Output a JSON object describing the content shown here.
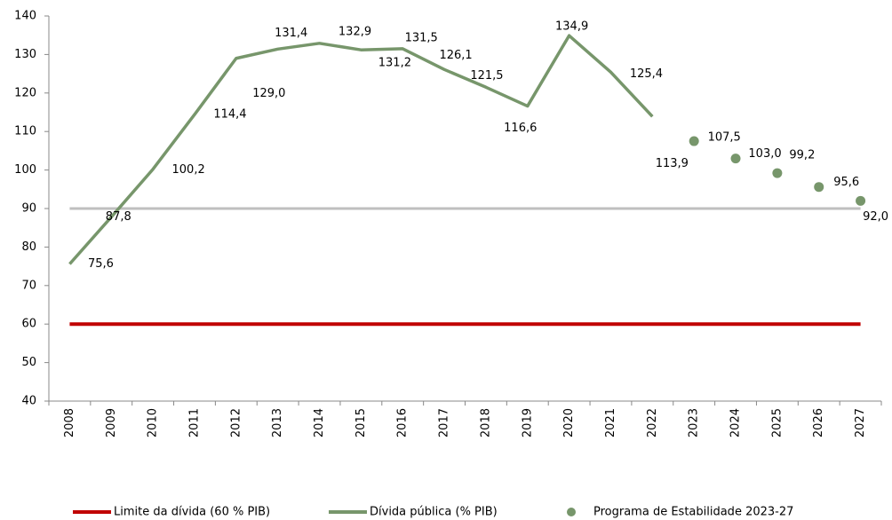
{
  "chart_data": {
    "type": "line",
    "categories": [
      "2008",
      "2009",
      "2010",
      "2011",
      "2012",
      "2013",
      "2014",
      "2015",
      "2016",
      "2017",
      "2018",
      "2019",
      "2020",
      "2021",
      "2022",
      "2023",
      "2024",
      "2025",
      "2026",
      "2027"
    ],
    "series": [
      {
        "name": "Limite da dívida (60 % PIB)",
        "color": "#c00000",
        "kind": "line",
        "values": [
          60,
          60,
          60,
          60,
          60,
          60,
          60,
          60,
          60,
          60,
          60,
          60,
          60,
          60,
          60,
          60,
          60,
          60,
          60,
          60
        ]
      },
      {
        "name": "Dívida pública (% PIB)",
        "color": "#77966b",
        "kind": "line",
        "values": [
          75.6,
          87.8,
          100.2,
          114.4,
          129.0,
          131.4,
          132.9,
          131.2,
          131.5,
          126.1,
          121.5,
          116.6,
          134.9,
          125.4,
          113.9,
          null,
          null,
          null,
          null,
          null
        ],
        "value_labels": [
          "75,6",
          "87,8",
          "100,2",
          "114,4",
          "129,0",
          "131,4",
          "132,9",
          "131,2",
          "131,5",
          "126,1",
          "121,5",
          "116,6",
          "134,9",
          "125,4",
          "113,9",
          null,
          null,
          null,
          null,
          null
        ]
      },
      {
        "name": "Programa de Estabilidade 2023-27",
        "color": "#77966b",
        "kind": "scatter",
        "values": [
          null,
          null,
          null,
          null,
          null,
          null,
          null,
          null,
          null,
          null,
          null,
          null,
          null,
          null,
          null,
          107.5,
          103.0,
          99.2,
          95.6,
          92.0
        ],
        "value_labels": [
          null,
          null,
          null,
          null,
          null,
          null,
          null,
          null,
          null,
          null,
          null,
          null,
          null,
          null,
          null,
          "107,5",
          "103,0",
          "99,2",
          "95,6",
          "92,0"
        ]
      }
    ],
    "reference_line": {
      "value": 90,
      "color": "#bfbfbf"
    },
    "ylim": [
      40,
      140
    ],
    "yticks": [
      40,
      50,
      60,
      70,
      80,
      90,
      100,
      110,
      120,
      130,
      140
    ],
    "legend": "bottom"
  }
}
